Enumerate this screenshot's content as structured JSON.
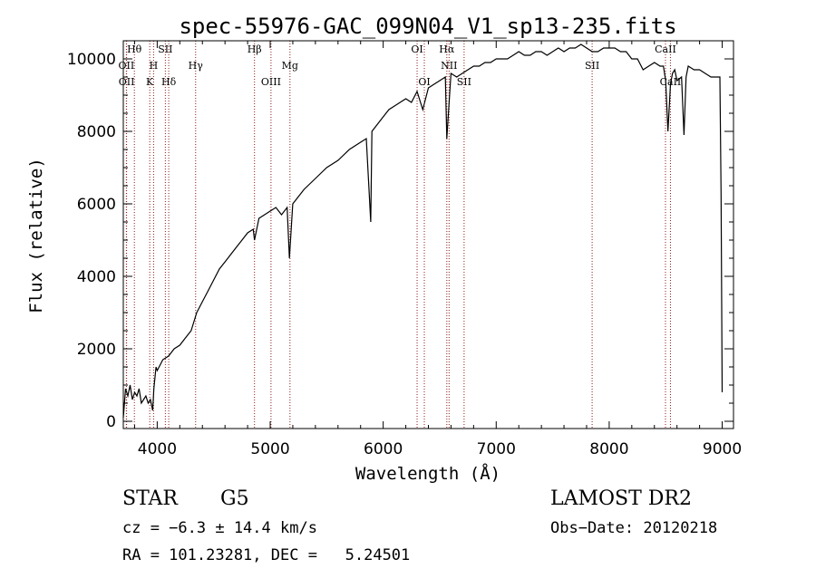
{
  "chart_data": {
    "type": "line",
    "title": "spec-55976-GAC_099N04_V1_sp13-235.fits",
    "xlabel": "Wavelength (Å)",
    "ylabel": "Flux (relative)",
    "xlim": [
      3700,
      9100
    ],
    "ylim": [
      -200,
      10500
    ],
    "x_ticks": [
      4000,
      5000,
      6000,
      7000,
      8000,
      9000
    ],
    "y_ticks": [
      0,
      2000,
      4000,
      6000,
      8000,
      10000
    ],
    "grid": false,
    "series": [
      {
        "x": [
          3700,
          3720,
          3740,
          3760,
          3780,
          3800,
          3820,
          3840,
          3860,
          3880,
          3900,
          3920,
          3940,
          3960,
          3970,
          3990,
          4000,
          4050,
          4100,
          4150,
          4200,
          4250,
          4300,
          4350,
          4400,
          4450,
          4500,
          4550,
          4600,
          4650,
          4700,
          4750,
          4800,
          4850,
          4861,
          4900,
          4950,
          5000,
          5050,
          5100,
          5150,
          5170,
          5200,
          5300,
          5400,
          5500,
          5600,
          5700,
          5800,
          5850,
          5890,
          5900,
          5950,
          6000,
          6050,
          6100,
          6150,
          6200,
          6250,
          6300,
          6350,
          6400,
          6450,
          6500,
          6550,
          6563,
          6600,
          6650,
          6700,
          6750,
          6800,
          6850,
          6900,
          6950,
          7000,
          7050,
          7100,
          7150,
          7200,
          7250,
          7300,
          7350,
          7400,
          7450,
          7500,
          7550,
          7600,
          7650,
          7700,
          7750,
          7800,
          7850,
          7900,
          7950,
          8000,
          8050,
          8100,
          8150,
          8200,
          8250,
          8300,
          8350,
          8400,
          8450,
          8480,
          8500,
          8520,
          8542,
          8560,
          8580,
          8600,
          8640,
          8662,
          8680,
          8700,
          8750,
          8800,
          8850,
          8900,
          8950,
          8980,
          8990,
          9000
        ],
        "y": [
          100,
          900,
          700,
          1000,
          600,
          800,
          700,
          900,
          500,
          600,
          700,
          500,
          600,
          300,
          900,
          1500,
          1400,
          1700,
          1800,
          2000,
          2100,
          2300,
          2500,
          3000,
          3300,
          3600,
          3900,
          4200,
          4400,
          4600,
          4800,
          5000,
          5200,
          5300,
          5000,
          5600,
          5700,
          5800,
          5900,
          5700,
          5900,
          4500,
          6000,
          6400,
          6700,
          7000,
          7200,
          7500,
          7700,
          7800,
          5500,
          8000,
          8200,
          8400,
          8600,
          8700,
          8800,
          8900,
          8800,
          9100,
          8600,
          9200,
          9300,
          9400,
          9500,
          7800,
          9600,
          9500,
          9600,
          9700,
          9800,
          9800,
          9900,
          9900,
          10000,
          10000,
          10000,
          10100,
          10200,
          10100,
          10100,
          10200,
          10200,
          10100,
          10200,
          10300,
          10200,
          10300,
          10300,
          10400,
          10300,
          10200,
          10200,
          10300,
          10300,
          10300,
          10200,
          10200,
          10000,
          10000,
          9700,
          9800,
          9900,
          9800,
          9800,
          9400,
          8000,
          9300,
          9600,
          9700,
          9400,
          9500,
          7900,
          9500,
          9800,
          9700,
          9700,
          9600,
          9500,
          9500,
          9500,
          6300,
          800
        ]
      }
    ],
    "lines": [
      {
        "label": "Hθ",
        "x": 3798
      },
      {
        "label": "OII",
        "x": 3727
      },
      {
        "label": "OII",
        "x": 3729
      },
      {
        "label": "H",
        "x": 3968
      },
      {
        "label": "K",
        "x": 3934
      },
      {
        "label": "SII",
        "x": 4072
      },
      {
        "label": "Hδ",
        "x": 4102
      },
      {
        "label": "Hγ",
        "x": 4340
      },
      {
        "label": "Hβ",
        "x": 4861
      },
      {
        "label": "OIII",
        "x": 5007
      },
      {
        "label": "Mg",
        "x": 5175
      },
      {
        "label": "OI",
        "x": 6300
      },
      {
        "label": "OI",
        "x": 6364
      },
      {
        "label": "Hα",
        "x": 6563
      },
      {
        "label": "NII",
        "x": 6583
      },
      {
        "label": "SII",
        "x": 6716
      },
      {
        "label": "SII",
        "x": 7849
      },
      {
        "label": "CaII",
        "x": 8498
      },
      {
        "label": "CaII",
        "x": 8542
      }
    ]
  },
  "footer": {
    "object_class": "STAR",
    "subclass": "G5",
    "survey": "LAMOST DR2",
    "cz": "cz = −6.3 ± 14.4 km/s",
    "obs_date": "Obs−Date: 20120218",
    "coords": "RA = 101.23281, DEC =   5.24501"
  },
  "colors": {
    "spectrum": "#000000",
    "line_markers": "#8b1a1a",
    "axes": "#000000",
    "background": "#ffffff"
  }
}
